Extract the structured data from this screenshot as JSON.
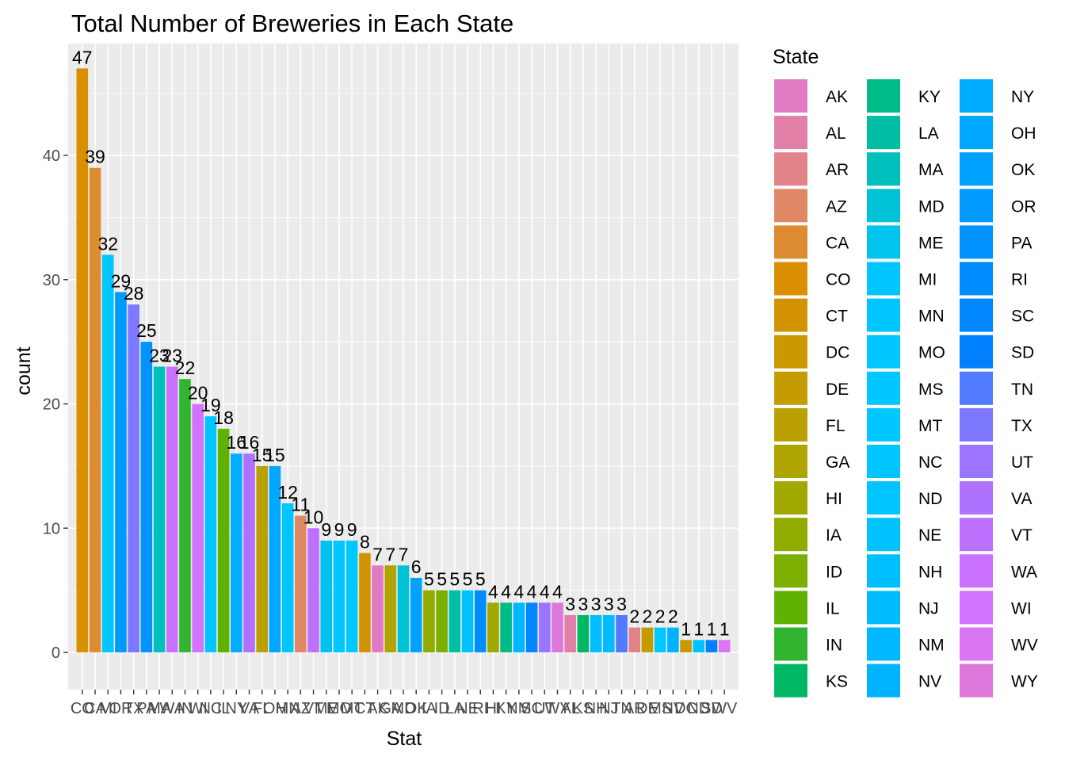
{
  "chart_data": {
    "type": "bar",
    "title": "Total Number of Breweries in Each State",
    "xlabel": "Stat",
    "ylabel": "count",
    "ylim": [
      0,
      48
    ],
    "yticks": [
      0,
      10,
      20,
      30,
      40
    ],
    "grid": true,
    "legend_title": "State",
    "legend_position": "right",
    "categories": [
      "CO",
      "CA",
      "MI",
      "OR",
      "TX",
      "PA",
      "MA",
      "WA",
      "IN",
      "WI",
      "NC",
      "IL",
      "NY",
      "VA",
      "FL",
      "OH",
      "MN",
      "AZ",
      "VT",
      "ME",
      "MO",
      "MT",
      "CT",
      "AK",
      "GA",
      "MD",
      "OK",
      "IA",
      "ID",
      "LA",
      "NE",
      "RI",
      "HI",
      "KY",
      "NM",
      "SC",
      "UT",
      "WY",
      "AL",
      "KS",
      "NH",
      "NJ",
      "TN",
      "AR",
      "DE",
      "MS",
      "NV",
      "DC",
      "ND",
      "SD",
      "WV"
    ],
    "values": [
      47,
      39,
      32,
      29,
      28,
      25,
      23,
      23,
      22,
      20,
      19,
      18,
      16,
      16,
      15,
      15,
      12,
      11,
      10,
      9,
      9,
      9,
      8,
      7,
      7,
      7,
      6,
      5,
      5,
      5,
      5,
      5,
      4,
      4,
      4,
      4,
      4,
      4,
      3,
      3,
      3,
      3,
      3,
      2,
      2,
      2,
      2,
      1,
      1,
      1,
      1
    ],
    "legend_states": [
      "AK",
      "AL",
      "AR",
      "AZ",
      "CA",
      "CO",
      "CT",
      "DC",
      "DE",
      "FL",
      "GA",
      "HI",
      "IA",
      "ID",
      "IL",
      "IN",
      "KS",
      "KY",
      "LA",
      "MA",
      "MD",
      "ME",
      "MI",
      "MN",
      "MO",
      "MS",
      "MT",
      "NC",
      "ND",
      "NE",
      "NH",
      "NJ",
      "NM",
      "NV",
      "NY",
      "OH",
      "OK",
      "OR",
      "PA",
      "RI",
      "SC",
      "SD",
      "TN",
      "TX",
      "UT",
      "VA",
      "VT",
      "WA",
      "WI",
      "WV",
      "WY"
    ]
  }
}
